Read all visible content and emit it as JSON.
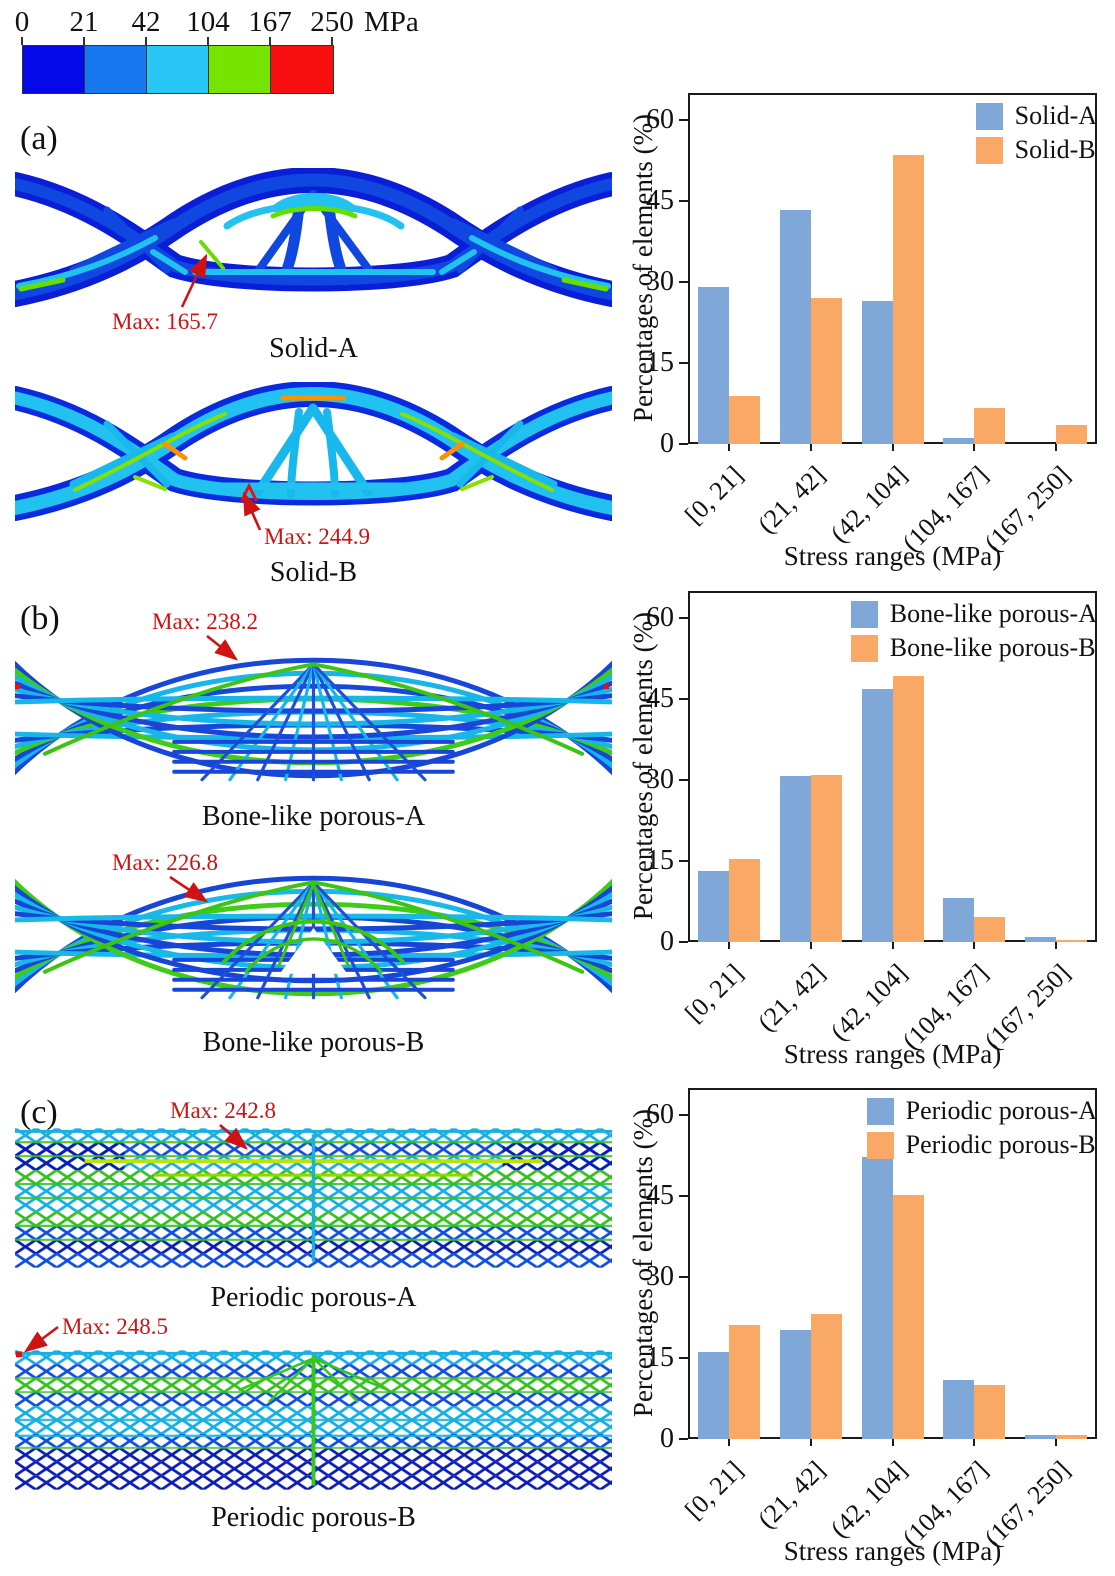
{
  "colorbar": {
    "unit": "MPa",
    "ticks": [
      "0",
      "21",
      "42",
      "104",
      "167",
      "250"
    ],
    "segment_colors": [
      "#0508e8",
      "#1677f0",
      "#27c6f4",
      "#77e400",
      "#f70e0e"
    ]
  },
  "annotation_color": "#cf1212",
  "panels": [
    {
      "letter": "(a)",
      "structures": [
        {
          "caption": "Solid-A",
          "max_label": "Max: 165.7"
        },
        {
          "caption": "Solid-B",
          "max_label": "Max: 244.9"
        }
      ]
    },
    {
      "letter": "(b)",
      "structures": [
        {
          "caption": "Bone-like porous-A",
          "max_label": "Max: 238.2"
        },
        {
          "caption": "Bone-like porous-B",
          "max_label": "Max: 226.8"
        }
      ]
    },
    {
      "letter": "(c)",
      "structures": [
        {
          "caption": "Periodic porous-A",
          "max_label": "Max: 242.8"
        },
        {
          "caption": "Periodic porous-B",
          "max_label": "Max: 248.5"
        }
      ]
    }
  ],
  "chart_data": [
    {
      "type": "bar",
      "categories": [
        "[0, 21]",
        "(21, 42]",
        "(42, 104]",
        "(104, 167]",
        "(167, 250]"
      ],
      "series": [
        {
          "name": "Solid-A",
          "color": "#7FA8D8",
          "values": [
            29.0,
            43.4,
            26.4,
            1.1,
            0
          ]
        },
        {
          "name": "Solid-B",
          "color": "#F9A865",
          "values": [
            8.8,
            27.1,
            53.5,
            6.7,
            3.6
          ]
        }
      ],
      "xlabel": "Stress ranges (MPa)",
      "ylabel": "Percentages of elements (%)",
      "ylim": [
        0,
        65
      ],
      "yticks": [
        0,
        15,
        30,
        45,
        60
      ],
      "grid": false,
      "legend_position": "top-right"
    },
    {
      "type": "bar",
      "categories": [
        "[0, 21]",
        "(21, 42]",
        "(42, 104]",
        "(104, 167]",
        "(167, 250]"
      ],
      "series": [
        {
          "name": "Bone-like porous-A",
          "color": "#7FA8D8",
          "values": [
            13.2,
            30.8,
            46.8,
            8.2,
            1.0
          ]
        },
        {
          "name": "Bone-like porous-B",
          "color": "#F9A865",
          "values": [
            15.3,
            30.9,
            49.3,
            4.7,
            0.3
          ]
        }
      ],
      "xlabel": "Stress ranges (MPa)",
      "ylabel": "Percentages of elements (%)",
      "ylim": [
        0,
        65
      ],
      "yticks": [
        0,
        15,
        30,
        45,
        60
      ],
      "grid": false,
      "legend_position": "top-right"
    },
    {
      "type": "bar",
      "categories": [
        "[0, 21]",
        "(21, 42]",
        "(42, 104]",
        "(104, 167]",
        "(167, 250]"
      ],
      "series": [
        {
          "name": "Periodic porous-A",
          "color": "#7FA8D8",
          "values": [
            16.1,
            20.1,
            52.2,
            11.0,
            0.7
          ]
        },
        {
          "name": "Periodic porous-B",
          "color": "#F9A865",
          "values": [
            21.2,
            23.1,
            45.2,
            10.0,
            0.7
          ]
        }
      ],
      "xlabel": "Stress ranges (MPa)",
      "ylabel": "Percentages of elements (%)",
      "ylim": [
        0,
        65
      ],
      "yticks": [
        0,
        15,
        30,
        45,
        60
      ],
      "grid": false,
      "legend_position": "top-right"
    }
  ]
}
